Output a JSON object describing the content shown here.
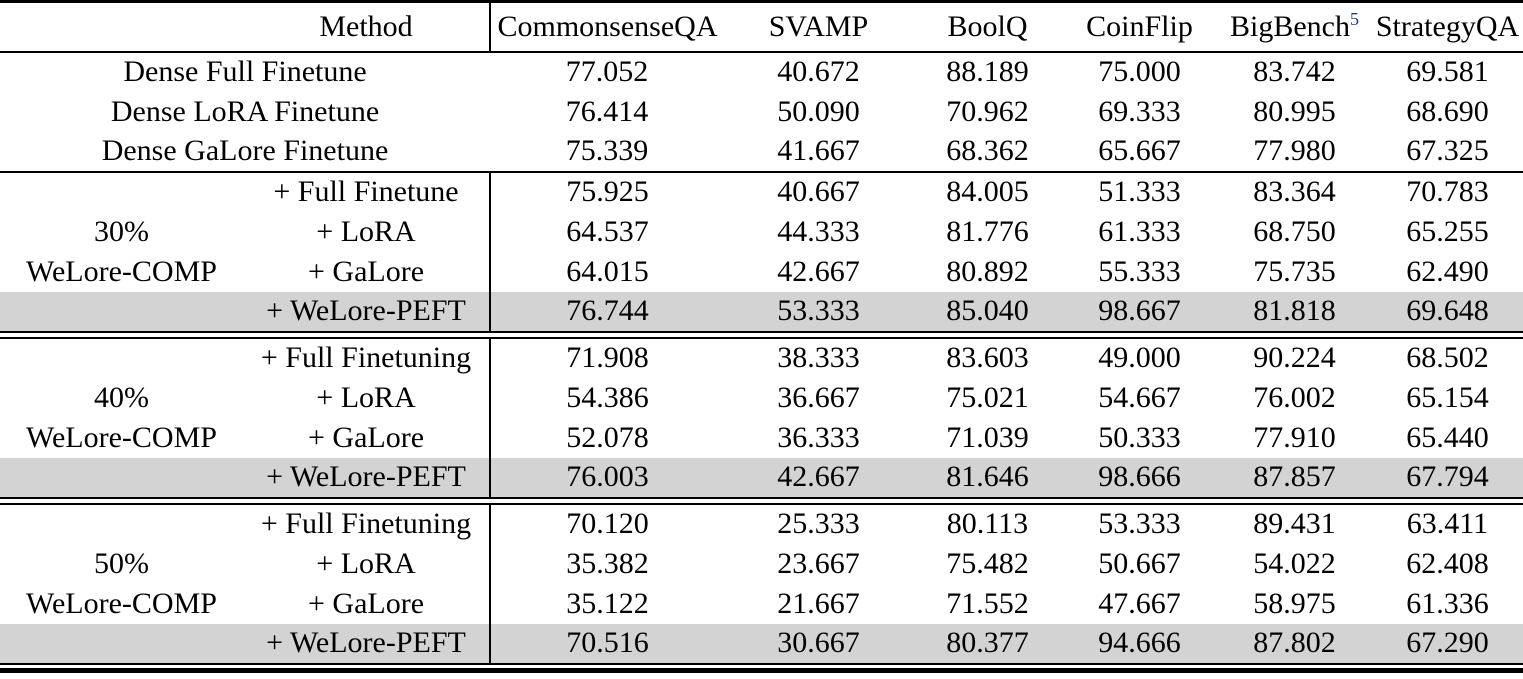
{
  "table": {
    "header": {
      "group": "",
      "method": "Method",
      "columns": [
        "CommonsenseQA",
        "SVAMP",
        "BoolQ",
        "CoinFlip",
        "BigBench",
        "StrategyQA"
      ],
      "bigbench_footnote": "5"
    },
    "dense_rows": [
      {
        "method": "Dense Full Finetune",
        "values": [
          "77.052",
          "40.672",
          "88.189",
          "75.000",
          "83.742",
          "69.581"
        ]
      },
      {
        "method": "Dense LoRA Finetune",
        "values": [
          "76.414",
          "50.090",
          "70.962",
          "69.333",
          "80.995",
          "68.690"
        ]
      },
      {
        "method": "Dense GaLore Finetune",
        "values": [
          "75.339",
          "41.667",
          "68.362",
          "65.667",
          "77.980",
          "67.325"
        ]
      }
    ],
    "sections": [
      {
        "group_line1": "30%",
        "group_line2": "WeLore-COMP",
        "rows": [
          {
            "method": "+ Full Finetune",
            "values": [
              "75.925",
              "40.667",
              "84.005",
              "51.333",
              "83.364",
              "70.783"
            ],
            "highlight": false
          },
          {
            "method": "+ LoRA",
            "values": [
              "64.537",
              "44.333",
              "81.776",
              "61.333",
              "68.750",
              "65.255"
            ],
            "highlight": false
          },
          {
            "method": "+ GaLore",
            "values": [
              "64.015",
              "42.667",
              "80.892",
              "55.333",
              "75.735",
              "62.490"
            ],
            "highlight": false
          },
          {
            "method": "+ WeLore-PEFT",
            "values": [
              "76.744",
              "53.333",
              "85.040",
              "98.667",
              "81.818",
              "69.648"
            ],
            "highlight": true
          }
        ]
      },
      {
        "group_line1": "40%",
        "group_line2": "WeLore-COMP",
        "rows": [
          {
            "method": "+ Full Finetuning",
            "values": [
              "71.908",
              "38.333",
              "83.603",
              "49.000",
              "90.224",
              "68.502"
            ],
            "highlight": false
          },
          {
            "method": "+ LoRA",
            "values": [
              "54.386",
              "36.667",
              "75.021",
              "54.667",
              "76.002",
              "65.154"
            ],
            "highlight": false
          },
          {
            "method": "+ GaLore",
            "values": [
              "52.078",
              "36.333",
              "71.039",
              "50.333",
              "77.910",
              "65.440"
            ],
            "highlight": false
          },
          {
            "method": "+ WeLore-PEFT",
            "values": [
              "76.003",
              "42.667",
              "81.646",
              "98.666",
              "87.857",
              "67.794"
            ],
            "highlight": true
          }
        ]
      },
      {
        "group_line1": "50%",
        "group_line2": "WeLore-COMP",
        "rows": [
          {
            "method": "+ Full Finetuning",
            "values": [
              "70.120",
              "25.333",
              "80.113",
              "53.333",
              "89.431",
              "63.411"
            ],
            "highlight": false
          },
          {
            "method": "+ LoRA",
            "values": [
              "35.382",
              "23.667",
              "75.482",
              "50.667",
              "54.022",
              "62.408"
            ],
            "highlight": false
          },
          {
            "method": "+ GaLore",
            "values": [
              "35.122",
              "21.667",
              "71.552",
              "47.667",
              "58.975",
              "61.336"
            ],
            "highlight": false
          },
          {
            "method": "+ WeLore-PEFT",
            "values": [
              "70.516",
              "30.667",
              "80.377",
              "94.666",
              "87.802",
              "67.290"
            ],
            "highlight": true
          }
        ]
      }
    ],
    "colors": {
      "highlight_row": "#d3d3d3",
      "footnote_link": "#283593",
      "rule": "#000000"
    }
  }
}
